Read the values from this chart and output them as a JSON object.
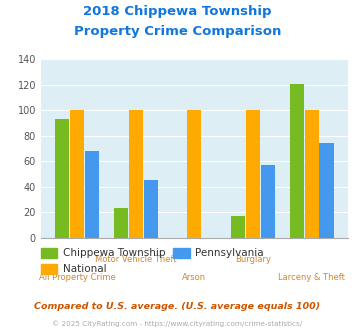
{
  "title_line1": "2018 Chippewa Township",
  "title_line2": "Property Crime Comparison",
  "categories": [
    "All Property Crime",
    "Motor Vehicle Theft",
    "Arson",
    "Burglary",
    "Larceny & Theft"
  ],
  "chippewa": [
    93,
    23,
    0,
    17,
    121
  ],
  "national": [
    100,
    100,
    100,
    100,
    100
  ],
  "pennsylvania": [
    68,
    45,
    0,
    57,
    74
  ],
  "color_chippewa": "#77bb22",
  "color_national": "#ffaa00",
  "color_pennsylvania": "#4499ee",
  "bg_plot": "#ddeef5",
  "bg_fig": "#ffffff",
  "title_color": "#1177dd",
  "label_color": "#cc8833",
  "ylabel_max": 140,
  "yticks": [
    0,
    20,
    40,
    60,
    80,
    100,
    120,
    140
  ],
  "footnote1": "Compared to U.S. average. (U.S. average equals 100)",
  "footnote2": "© 2025 CityRating.com - https://www.cityrating.com/crime-statistics/",
  "footnote1_color": "#cc5500",
  "footnote2_color": "#aaaaaa",
  "x_label_row1": [
    "Motor Vehicle Theft",
    "Burglary"
  ],
  "x_label_row2": [
    "All Property Crime",
    "Arson",
    "Larceny & Theft"
  ]
}
